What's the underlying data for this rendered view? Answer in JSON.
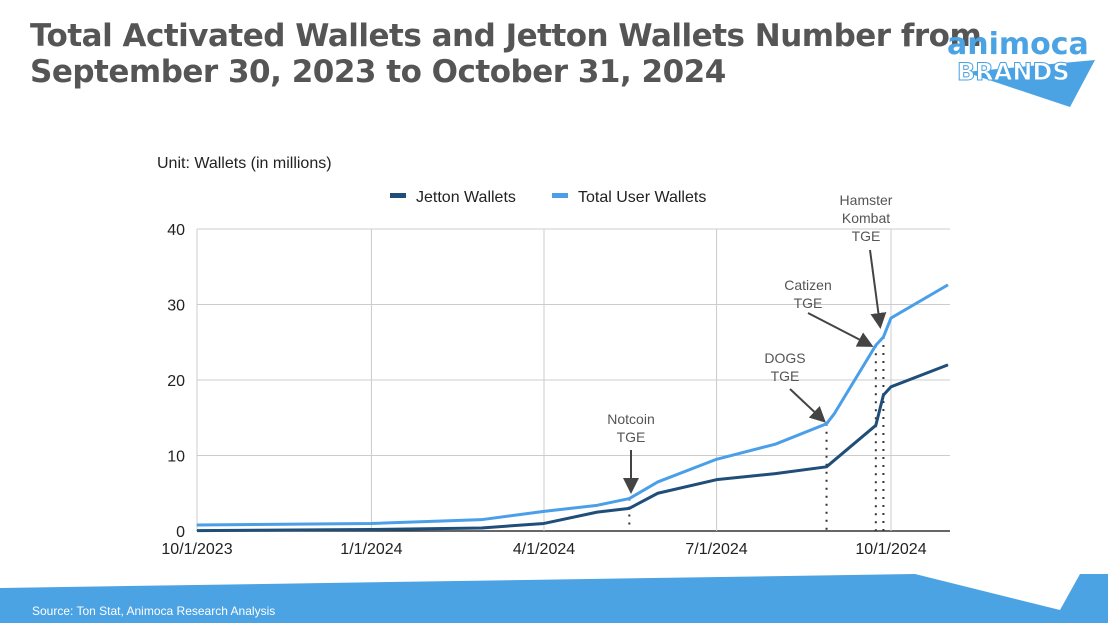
{
  "header": {
    "title_line1": "Total Activated Wallets and Jetton Wallets Number from",
    "title_line2": "September 30, 2023 to October 31, 2024",
    "logo_text_top": "animoca",
    "logo_text_bottom": "BRANDS"
  },
  "footer": {
    "source": "Source: Ton Stat, Animoca Research Analysis"
  },
  "colors": {
    "jetton": "#1f4e79",
    "total": "#4a9fe8",
    "banner": "#4ba3e3"
  },
  "chart_data": {
    "type": "line",
    "unit_label": "Unit: Wallets (in millions)",
    "x_unit": "days since 10/1/2023",
    "xlim": [
      0,
      396
    ],
    "ylim": [
      0,
      40
    ],
    "yticks": [
      0,
      10,
      20,
      30,
      40
    ],
    "xticks": [
      {
        "day": 0,
        "label": "10/1/2023"
      },
      {
        "day": 92,
        "label": "1/1/2024"
      },
      {
        "day": 183,
        "label": "4/1/2024"
      },
      {
        "day": 274,
        "label": "7/1/2024"
      },
      {
        "day": 366,
        "label": "10/1/2024"
      }
    ],
    "legend_position": "top",
    "series": [
      {
        "name": "Jetton Wallets",
        "color": "#1f4e79",
        "points": [
          [
            0,
            0.05
          ],
          [
            92,
            0.2
          ],
          [
            150,
            0.4
          ],
          [
            183,
            1.0
          ],
          [
            211,
            2.5
          ],
          [
            228,
            3.0
          ],
          [
            243,
            5.0
          ],
          [
            274,
            6.8
          ],
          [
            305,
            7.6
          ],
          [
            332,
            8.5
          ],
          [
            358,
            14.0
          ],
          [
            362,
            18.0
          ],
          [
            366,
            19.1
          ],
          [
            396,
            22.0
          ]
        ]
      },
      {
        "name": "Total User Wallets",
        "color": "#4a9fe8",
        "points": [
          [
            0,
            0.8
          ],
          [
            92,
            1.0
          ],
          [
            150,
            1.5
          ],
          [
            183,
            2.6
          ],
          [
            211,
            3.4
          ],
          [
            228,
            4.3
          ],
          [
            243,
            6.5
          ],
          [
            274,
            9.5
          ],
          [
            305,
            11.5
          ],
          [
            332,
            14.2
          ],
          [
            336,
            15.5
          ],
          [
            358,
            24.6
          ],
          [
            362,
            25.7
          ],
          [
            366,
            28.2
          ],
          [
            396,
            32.6
          ]
        ]
      }
    ],
    "annotations": [
      {
        "day": 228,
        "label_line1": "Notcoin",
        "label_line2": "TGE"
      },
      {
        "day": 332,
        "label_line1": "DOGS",
        "label_line2": "TGE"
      },
      {
        "day": 358,
        "label_line1": "Catizen",
        "label_line2": "TGE"
      },
      {
        "day": 362,
        "label_line1": "Hamster",
        "label_line2": "Kombat",
        "label_line3": "TGE"
      }
    ]
  }
}
